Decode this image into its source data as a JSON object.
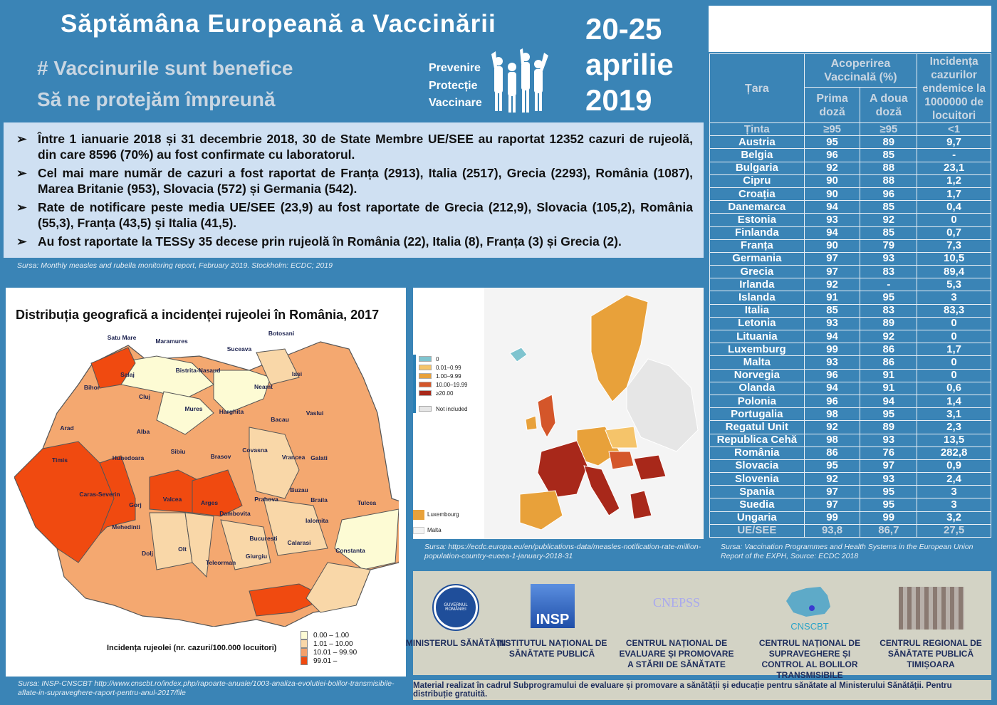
{
  "header": {
    "title": "Săptămâna Europeană a Vaccinării",
    "subtitle1": "# Vaccinurile sunt benefice",
    "subtitle2": "Să ne protejăm împreună",
    "slogan": [
      "Prevenire",
      "Protecție",
      "Vaccinare"
    ],
    "dates": [
      "20-25",
      "aprilie",
      "2019"
    ]
  },
  "facts": [
    "Între 1 ianuarie 2018 și 31 decembrie 2018, 30 de State Membre UE/SEE au raportat 12352 cazuri de rujeolă, din care 8596 (70%) au fost confirmate cu laboratorul.",
    "Cel mai mare număr de cazuri a fost raportat de Franța (2913), Italia (2517), Grecia (2293), România (1087), Marea Britanie (953), Slovacia (572) și Germania (542).",
    "Rate de notificare peste media UE/SEE (23,9) au fost raportate de Grecia (212,9), Slovacia (105,2), România (55,3), Franța (43,5) și Italia (41,5).",
    "Au fost raportate la TESSy 35 decese prin rujeolă în România (22), Italia (8), Franța (3) și Grecia (2)."
  ],
  "facts_source": "Sursa: Monthly measles and rubella monitoring report, February 2019. Stockholm: ECDC; 2019",
  "romania_map": {
    "title": "Distribuția geografică a incidenței rujeolei în România, 2017",
    "legend_title": "Incidența rujeolei (nr. cazuri/100.000 locuitori)",
    "legend": [
      {
        "label": "0.00 – 1.00",
        "color": "#fdfbd4"
      },
      {
        "label": "1.01 – 10.00",
        "color": "#f9d7a8"
      },
      {
        "label": "10.01 – 99.90",
        "color": "#f4a06a"
      },
      {
        "label": "99.01 –",
        "color": "#f04a10"
      }
    ],
    "counties": [
      "Satu Mare",
      "Maramures",
      "Suceava",
      "Botosani",
      "Bistrita-Nasaud",
      "Salaj",
      "Iasi",
      "Neamt",
      "Bihor",
      "Cluj",
      "Mures",
      "Harghita",
      "Bacau",
      "Vaslui",
      "Arad",
      "Alba",
      "Covasna",
      "Vrancea",
      "Galati",
      "Timis",
      "Hunedoara",
      "Sibiu",
      "Brasov",
      "Caras-Severin",
      "Gorj",
      "Valcea",
      "Arges",
      "Prahova",
      "Buzau",
      "Braila",
      "Tulcea",
      "Mehedinti",
      "Dambovita",
      "Ialomita",
      "Bucuresti",
      "Calarasi",
      "Constanta",
      "Dolj",
      "Olt",
      "Teleorman",
      "Giurgiu"
    ],
    "source": "Sursa: INSP-CNSCBT http://www.cnscbt.ro/index.php/rapoarte-anuale/1003-analiza-evolutiei-bolilor-transmisibile-aflate-in-supraveghere-raport-pentru-anul-2017/file"
  },
  "europe_map": {
    "legend": [
      {
        "label": "0",
        "color": "#7fc4cf"
      },
      {
        "label": "0.01–0.99",
        "color": "#f5c46a"
      },
      {
        "label": "1.00–9.99",
        "color": "#e8a13a"
      },
      {
        "label": "10.00–19.99",
        "color": "#d4562a"
      },
      {
        "label": "≥20.00",
        "color": "#a8281a"
      },
      {
        "label": "Not included",
        "color": "#e6e6e6"
      }
    ],
    "insets": [
      "Luxembourg",
      "Malta"
    ],
    "source": "Sursa: https://ecdc.europa.eu/en/publications-data/measles-notification-rate-million-population-country-eueea-1-january-2018-31"
  },
  "table": {
    "headers": {
      "country": "Țara",
      "coverage": "Acoperirea Vaccinală (%)",
      "dose1": "Prima doză",
      "dose2": "A doua doză",
      "incidence": "Incidența cazurilor endemice la 1000000 de locuitori"
    },
    "target": [
      "Ținta",
      "≥95",
      "≥95",
      "<1"
    ],
    "rows": [
      [
        "Austria",
        "95",
        "89",
        "9,7"
      ],
      [
        "Belgia",
        "96",
        "85",
        "-"
      ],
      [
        "Bulgaria",
        "92",
        "88",
        "23,1"
      ],
      [
        "Cipru",
        "90",
        "88",
        "1,2"
      ],
      [
        "Croația",
        "90",
        "96",
        "1,7"
      ],
      [
        "Danemarca",
        "94",
        "85",
        "0,4"
      ],
      [
        "Estonia",
        "93",
        "92",
        "0"
      ],
      [
        "Finlanda",
        "94",
        "85",
        "0,7"
      ],
      [
        "Franța",
        "90",
        "79",
        "7,3"
      ],
      [
        "Germania",
        "97",
        "93",
        "10,5"
      ],
      [
        "Grecia",
        "97",
        "83",
        "89,4"
      ],
      [
        "Irlanda",
        "92",
        "-",
        "5,3"
      ],
      [
        "Islanda",
        "91",
        "95",
        "3"
      ],
      [
        "Italia",
        "85",
        "83",
        "83,3"
      ],
      [
        "Letonia",
        "93",
        "89",
        "0"
      ],
      [
        "Lituania",
        "94",
        "92",
        "0"
      ],
      [
        "Luxemburg",
        "99",
        "86",
        "1,7"
      ],
      [
        "Malta",
        "93",
        "86",
        "0"
      ],
      [
        "Norvegia",
        "96",
        "91",
        "0"
      ],
      [
        "Olanda",
        "94",
        "91",
        "0,6"
      ],
      [
        "Polonia",
        "96",
        "94",
        "1,4"
      ],
      [
        "Portugalia",
        "98",
        "95",
        "3,1"
      ],
      [
        "Regatul Unit",
        "92",
        "89",
        "2,3"
      ],
      [
        "Republica Cehă",
        "98",
        "93",
        "13,5"
      ],
      [
        "România",
        "86",
        "76",
        "282,8"
      ],
      [
        "Slovacia",
        "95",
        "97",
        "0,9"
      ],
      [
        "Slovenia",
        "92",
        "93",
        "2,4"
      ],
      [
        "Spania",
        "97",
        "95",
        "3"
      ],
      [
        "Suedia",
        "97",
        "95",
        "3"
      ],
      [
        "Ungaria",
        "99",
        "99",
        "3,2"
      ]
    ],
    "total": [
      "UE/SEE",
      "93,8",
      "86,7",
      "27,5"
    ],
    "source": "Sursa: Vaccination Programmes and Health Systems in the European Union Report of the EXPH, Source: ECDC 2018"
  },
  "logos": [
    {
      "mark": "GUVERNUL ROMÂNIEI",
      "name": "MINISTERUL SĂNĂTĂȚII"
    },
    {
      "mark": "INSP",
      "name": "INSTITUTUL NAȚIONAL DE SĂNĂTATE PUBLICĂ"
    },
    {
      "mark": "CNEPSS",
      "name": "CENTRUL NAȚIONAL DE EVALUARE ȘI PROMOVARE A STĂRII DE SĂNĂTATE"
    },
    {
      "mark": "CNSCBT",
      "name": "CENTRUL NAȚIONAL DE SUPRAVEGHERE ȘI CONTROL AL BOLILOR TRANSMISIBILE"
    },
    {
      "mark": "",
      "name": "CENTRUL REGIONAL DE SĂNĂTATE PUBLICĂ TIMIȘOARA"
    }
  ],
  "footer": "Material realizat în cadrul Subprogramului de evaluare și promovare a sănătății și educație pentru sănătate al Ministerului Sănătății. Pentru distribuție gratuită."
}
